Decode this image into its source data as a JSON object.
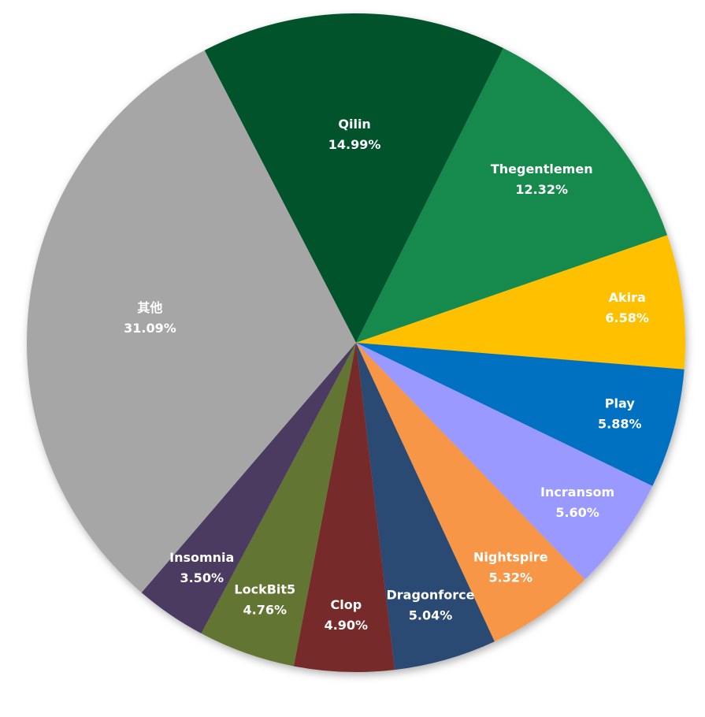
{
  "chart_data": {
    "type": "pie",
    "categories": [
      "Qilin",
      "Thegentlemen",
      "Akira",
      "Play",
      "Incransom",
      "Nightspire",
      "Dragonforce",
      "Clop",
      "LockBit5",
      "Insomnia",
      "其他"
    ],
    "values": [
      14.99,
      12.32,
      6.58,
      5.88,
      5.6,
      5.32,
      5.04,
      4.9,
      4.76,
      3.5,
      31.09
    ],
    "value_labels": [
      "14.99%",
      "12.32%",
      "6.58%",
      "5.88%",
      "5.60%",
      "5.32%",
      "5.04%",
      "4.90%",
      "4.76%",
      "3.50%",
      "31.09%"
    ],
    "colors": [
      "#05532b",
      "#158a4e",
      "#ffc000",
      "#0070c0",
      "#9999ff",
      "#f79646",
      "#2c4a73",
      "#772b2b",
      "#637533",
      "#4b3a60",
      "#a6a6a6"
    ]
  }
}
